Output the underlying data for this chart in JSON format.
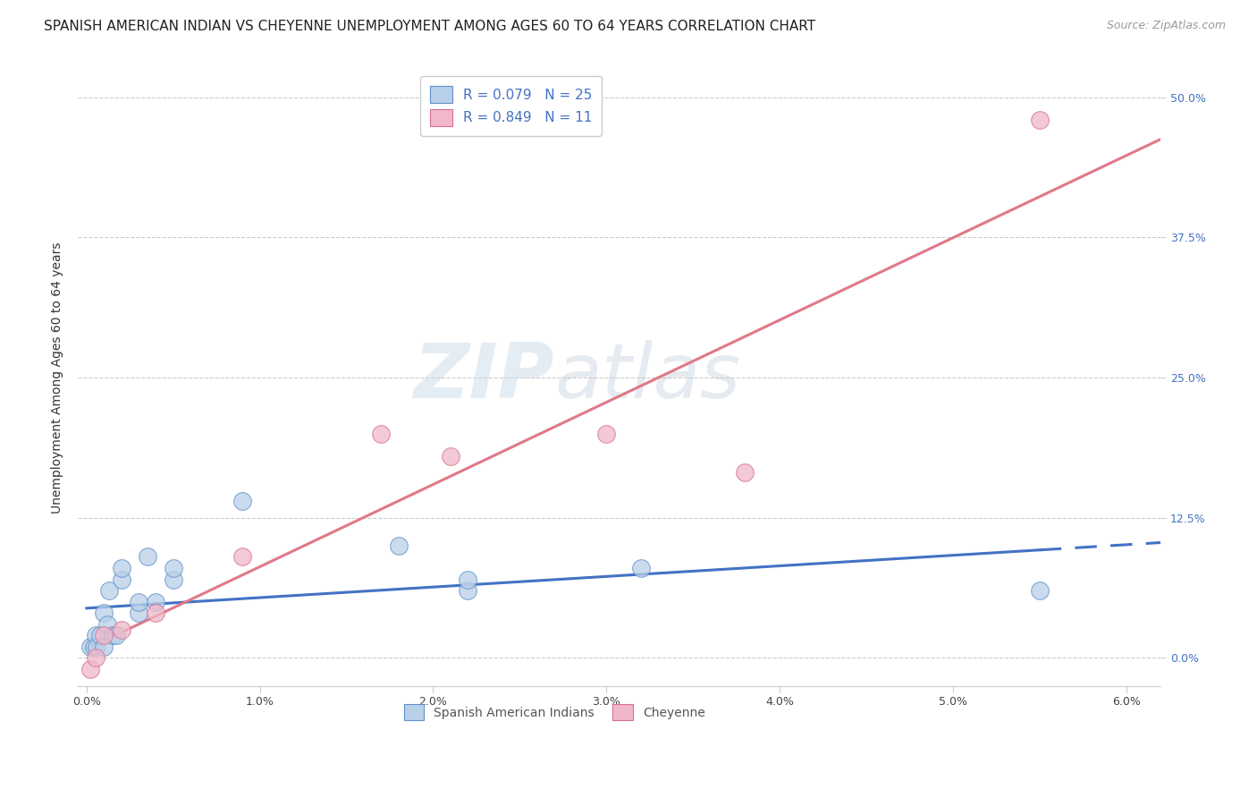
{
  "title": "SPANISH AMERICAN INDIAN VS CHEYENNE UNEMPLOYMENT AMONG AGES 60 TO 64 YEARS CORRELATION CHART",
  "source": "Source: ZipAtlas.com",
  "ylabel": "Unemployment Among Ages 60 to 64 years",
  "xlim": [
    -0.0005,
    0.062
  ],
  "ylim": [
    -0.025,
    0.525
  ],
  "xtick_labels": [
    "0.0%",
    "1.0%",
    "2.0%",
    "3.0%",
    "4.0%",
    "5.0%",
    "6.0%"
  ],
  "xtick_vals": [
    0.0,
    0.01,
    0.02,
    0.03,
    0.04,
    0.05,
    0.06
  ],
  "ytick_labels_right": [
    "0.0%",
    "12.5%",
    "25.0%",
    "37.5%",
    "50.0%"
  ],
  "ytick_vals": [
    0.0,
    0.125,
    0.25,
    0.375,
    0.5
  ],
  "watermark_zip": "ZIP",
  "watermark_atlas": "atlas",
  "blue_fill": "#b8d0e8",
  "blue_edge": "#6090c8",
  "pink_fill": "#f0b8c8",
  "pink_edge": "#d87090",
  "blue_line_color": "#4472c4",
  "pink_line_color": "#e07888",
  "legend_blue_label": "Spanish American Indians",
  "legend_pink_label": "Cheyenne",
  "R_blue": 0.079,
  "N_blue": 25,
  "R_pink": 0.849,
  "N_pink": 11,
  "blue_x": [
    0.0002,
    0.0004,
    0.0005,
    0.0006,
    0.0008,
    0.001,
    0.001,
    0.0012,
    0.0013,
    0.0015,
    0.0017,
    0.002,
    0.002,
    0.003,
    0.003,
    0.0035,
    0.004,
    0.005,
    0.005,
    0.009,
    0.018,
    0.022,
    0.022,
    0.032,
    0.055
  ],
  "blue_y": [
    0.01,
    0.01,
    0.02,
    0.01,
    0.02,
    0.01,
    0.04,
    0.03,
    0.06,
    0.02,
    0.02,
    0.07,
    0.08,
    0.04,
    0.05,
    0.09,
    0.05,
    0.07,
    0.08,
    0.14,
    0.1,
    0.06,
    0.07,
    0.08,
    0.06
  ],
  "pink_x": [
    0.0002,
    0.0005,
    0.001,
    0.002,
    0.004,
    0.009,
    0.017,
    0.021,
    0.03,
    0.038,
    0.055
  ],
  "pink_y": [
    -0.01,
    0.0,
    0.02,
    0.025,
    0.04,
    0.09,
    0.2,
    0.18,
    0.2,
    0.165,
    0.48
  ],
  "title_fontsize": 11,
  "axis_label_fontsize": 10,
  "tick_fontsize": 9,
  "legend_fontsize": 11,
  "marker_size": 200
}
